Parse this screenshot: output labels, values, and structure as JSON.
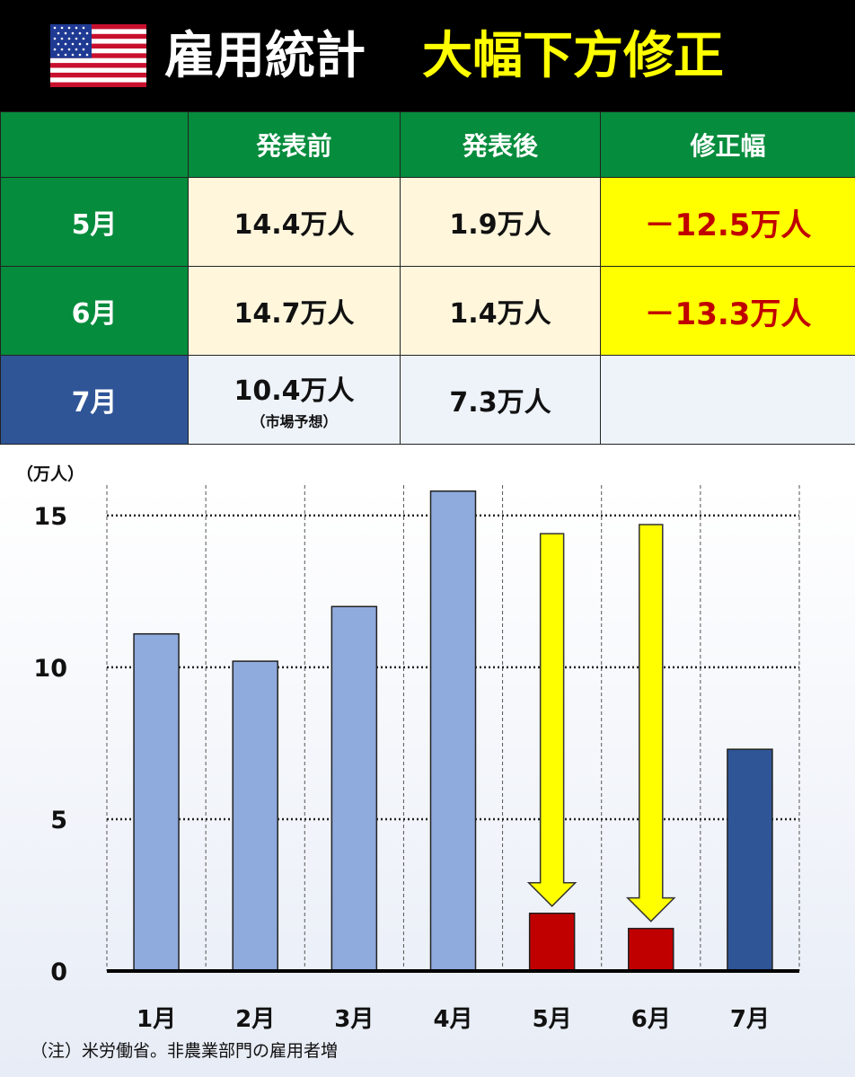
{
  "header": {
    "flag_icon": "us-flag-icon",
    "title": "雇用統計",
    "subtitle": "大幅下方修正"
  },
  "table": {
    "columns": [
      "",
      "発表前",
      "発表後",
      "修正幅"
    ],
    "rows": [
      {
        "label": "5月",
        "before": "14.4万人",
        "after": "1.9万人",
        "revision": "－12.5万人"
      },
      {
        "label": "6月",
        "before": "14.7万人",
        "after": "1.4万人",
        "revision": "－13.3万人"
      },
      {
        "label": "7月",
        "before": "10.4万人",
        "before_note": "（市場予想）",
        "after": "7.3万人",
        "revision": ""
      }
    ]
  },
  "colors": {
    "header_bg": "#000000",
    "green": "#058c3c",
    "navy": "#2f5597",
    "cream": "#fff6dc",
    "yellow": "#ffff00",
    "revision_text": "#c00000",
    "bar_light": "#8faadc",
    "bar_revised": "#c00000",
    "bar_latest": "#2f5597",
    "arrow": "#ffff00"
  },
  "chart_data": {
    "type": "bar",
    "categories": [
      "1月",
      "2月",
      "3月",
      "4月",
      "5月",
      "6月",
      "7月"
    ],
    "values": [
      11.1,
      10.2,
      12.0,
      15.8,
      1.9,
      1.4,
      7.3
    ],
    "revised_from": [
      null,
      null,
      null,
      null,
      14.4,
      14.7,
      null
    ],
    "ylabel": "（万人）",
    "yticks": [
      0,
      5,
      10,
      15
    ],
    "ylim": [
      0,
      16
    ],
    "grid": true
  },
  "footnote": "（注）米労働省。非農業部門の雇用者増"
}
